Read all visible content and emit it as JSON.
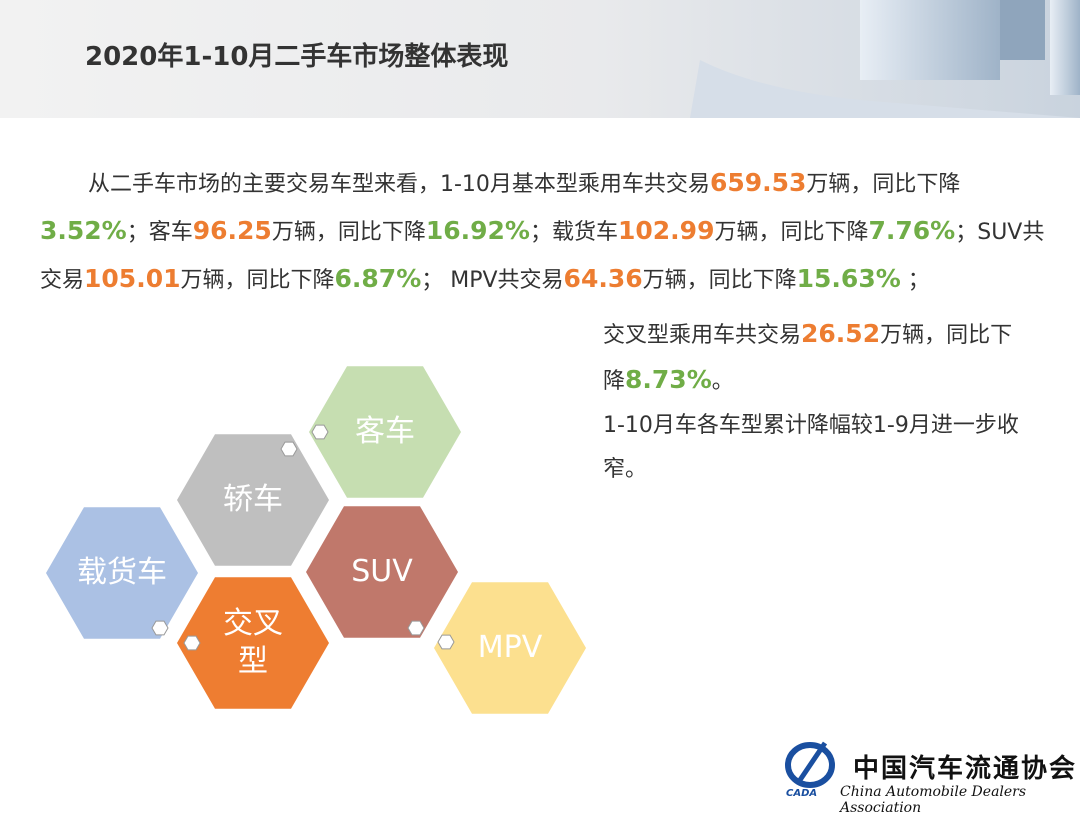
{
  "header": {
    "title": "2020年1-10月二手车市场整体表现"
  },
  "intro": {
    "runs": [
      {
        "text": "从二手车市场的主要交易车型来看，1-10月基本型乘用车共交易"
      },
      {
        "text": "659.53",
        "color": "#ed7d31"
      },
      {
        "text": "万辆，同比下降"
      },
      {
        "text": "3.52%",
        "color": "#70ad47"
      },
      {
        "text": "；客车"
      },
      {
        "text": "96.25",
        "color": "#ed7d31"
      },
      {
        "text": "万辆，同比下降"
      },
      {
        "text": "16.92%",
        "color": "#70ad47"
      },
      {
        "text": "；载货车"
      },
      {
        "text": "102.99",
        "color": "#ed7d31"
      },
      {
        "text": "万辆，同比下降"
      },
      {
        "text": "7.76%",
        "color": "#70ad47"
      },
      {
        "text": "；SUV共交易"
      },
      {
        "text": "105.01",
        "color": "#ed7d31"
      },
      {
        "text": "万辆，同比下降"
      },
      {
        "text": "6.87%",
        "color": "#70ad47"
      },
      {
        "text": "； MPV共交易"
      },
      {
        "text": "64.36",
        "color": "#ed7d31"
      },
      {
        "text": "万辆，同比下降"
      },
      {
        "text": "15.63%",
        "color": "#70ad47"
      },
      {
        "text": " ；"
      }
    ]
  },
  "side": {
    "runs": [
      {
        "text": "交叉型乘用车共交易"
      },
      {
        "text": "26.52",
        "color": "#ed7d31"
      },
      {
        "text": "万辆，同比下降"
      },
      {
        "text": "8.73%",
        "color": "#70ad47"
      },
      {
        "text": "。"
      }
    ],
    "note": "1-10月车各车型累计降幅较1-9月进一步收窄。"
  },
  "hexagons": [
    {
      "label": "客车",
      "color": "#c6deb1"
    },
    {
      "label": "轿车",
      "color": "#bfbfbf"
    },
    {
      "label": "载货车",
      "color": "#abc1e4"
    },
    {
      "label": "SUV",
      "color": "#c0786b"
    },
    {
      "label": "交叉型",
      "color": "#ee7d31"
    },
    {
      "label": "MPV",
      "color": "#fce08f"
    }
  ],
  "logo": {
    "name": "中国汽车流通协会",
    "english": "China Automobile Dealers Association",
    "mark": "CADA"
  }
}
